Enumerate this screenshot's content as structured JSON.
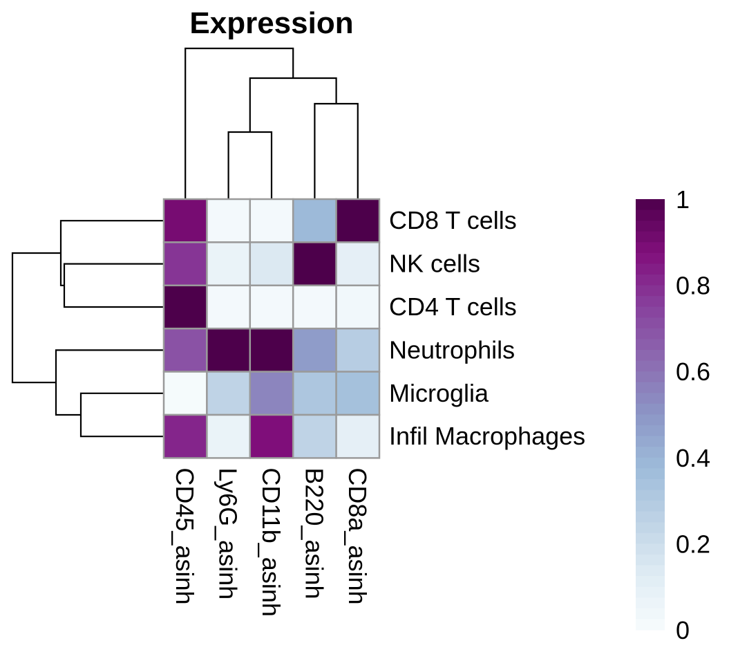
{
  "chart_data": {
    "type": "heatmap",
    "title": "Expression",
    "rows": [
      "CD8 T cells",
      "NK cells",
      "CD4 T cells",
      "Neutrophils",
      "Microglia",
      "Infil Macrophages"
    ],
    "columns": [
      "CD45_asinh",
      "Ly6G_asinh",
      "CD11b_asinh",
      "B220_asinh",
      "CD8a_asinh"
    ],
    "values": [
      [
        0.9,
        0.02,
        0.02,
        0.38,
        1.0
      ],
      [
        0.78,
        0.07,
        0.14,
        1.0,
        0.1
      ],
      [
        1.0,
        0.02,
        0.02,
        0.02,
        0.03
      ],
      [
        0.7,
        1.0,
        1.0,
        0.48,
        0.28
      ],
      [
        0.01,
        0.25,
        0.55,
        0.32,
        0.35
      ],
      [
        0.82,
        0.07,
        0.88,
        0.25,
        0.1
      ]
    ],
    "color_scale": {
      "min": 0,
      "max": 1,
      "stops": [
        "#f7fcfd",
        "#e0ecf4",
        "#bfd3e6",
        "#9ebcda",
        "#8c96c6",
        "#8c6bb1",
        "#88419d",
        "#810f7c",
        "#4d004b"
      ],
      "ticks": [
        "0",
        "0.2",
        "0.4",
        "0.6",
        "0.8",
        "1"
      ],
      "legend_placement": "right"
    },
    "row_dendrogram": "left",
    "column_dendrogram": "top"
  }
}
